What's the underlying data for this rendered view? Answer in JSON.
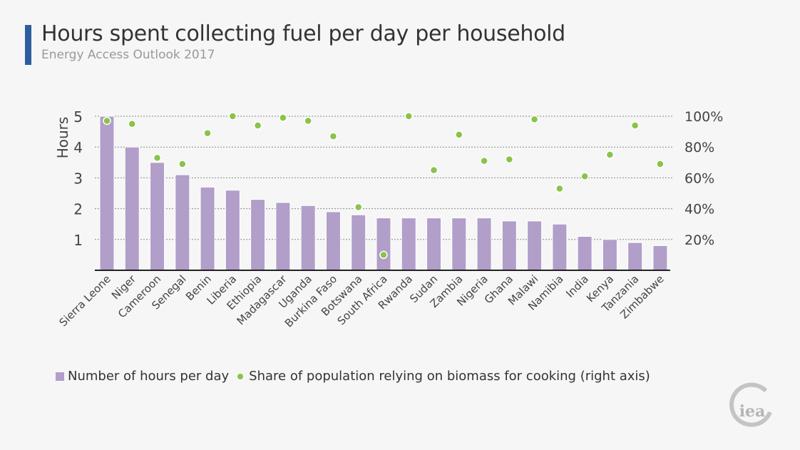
{
  "title": "Hours spent collecting fuel per day per household",
  "subtitle": "Energy Access Outlook 2017",
  "colors": {
    "accent": "#2e5d9e",
    "bars": "#b19ec9",
    "points": "#8bc34a",
    "logo": "#bbbbbb"
  },
  "logo_text": "iea",
  "chart_data": {
    "type": "bar",
    "ylabel": "Hours",
    "ylim": [
      0,
      5
    ],
    "y_ticks": [
      "1",
      "2",
      "3",
      "4",
      "5"
    ],
    "y2lim": [
      0,
      100
    ],
    "y2_ticks": [
      "20%",
      "40%",
      "60%",
      "80%",
      "100%"
    ],
    "grid": true,
    "legend_placement": "bottom",
    "categories": [
      "Sierra Leone",
      "Niger",
      "Cameroon",
      "Senegal",
      "Benin",
      "Liberia",
      "Ethiopia",
      "Madagascar",
      "Uganda",
      "Burkina Faso",
      "Botswana",
      "South Africa",
      "Rwanda",
      "Sudan",
      "Zambia",
      "Nigeria",
      "Ghana",
      "Malawi",
      "Namibia",
      "India",
      "Kenya",
      "Tanzania",
      "Zimbabwe"
    ],
    "series": [
      {
        "name": "Number of hours per day",
        "type": "bar",
        "axis": "left",
        "values": [
          5.0,
          4.0,
          3.5,
          3.1,
          2.7,
          2.6,
          2.3,
          2.2,
          2.1,
          1.9,
          1.8,
          1.7,
          1.7,
          1.7,
          1.7,
          1.7,
          1.6,
          1.6,
          1.5,
          1.1,
          1.0,
          0.9,
          0.8
        ]
      },
      {
        "name": "Share of population relying on biomass for cooking (right axis)",
        "type": "scatter",
        "axis": "right",
        "values": [
          97,
          95,
          73,
          69,
          89,
          100,
          94,
          99,
          97,
          87,
          41,
          10,
          100,
          65,
          88,
          71,
          72,
          98,
          53,
          61,
          75,
          94,
          69
        ]
      }
    ]
  }
}
